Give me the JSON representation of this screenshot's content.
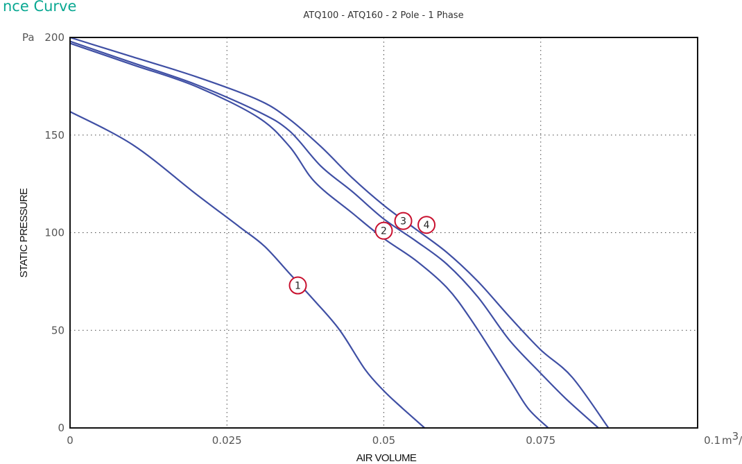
{
  "page": {
    "title": "nce Curve"
  },
  "chart_data": {
    "type": "line",
    "title": "ATQ100 - ATQ160 - 2 Pole - 1 Phase",
    "xlabel": "AIR VOLUME",
    "ylabel": "STATIC PRESSURE",
    "y_unit": "Pa",
    "x_unit_prefix": "m",
    "x_unit_super": "3",
    "x_unit_suffix": "/s",
    "xlim": [
      0,
      0.1
    ],
    "ylim": [
      0,
      200
    ],
    "x_ticks": [
      {
        "value": 0,
        "label": "0"
      },
      {
        "value": 0.025,
        "label": "0.025"
      },
      {
        "value": 0.05,
        "label": "0.05"
      },
      {
        "value": 0.075,
        "label": "0.075"
      },
      {
        "value": 0.1,
        "label": "0.1"
      }
    ],
    "y_ticks": [
      {
        "value": 0,
        "label": "0"
      },
      {
        "value": 50,
        "label": "50"
      },
      {
        "value": 100,
        "label": "100"
      },
      {
        "value": 150,
        "label": "150"
      },
      {
        "value": 200,
        "label": "200"
      }
    ],
    "grid": true,
    "line_color": "#3f4fa4",
    "marker_color": "#c8102e",
    "series": [
      {
        "name": "1",
        "points": [
          [
            0,
            162
          ],
          [
            0.01,
            145
          ],
          [
            0.02,
            120
          ],
          [
            0.027,
            103
          ],
          [
            0.031,
            93
          ],
          [
            0.035,
            79
          ],
          [
            0.039,
            65
          ],
          [
            0.043,
            50
          ],
          [
            0.047,
            30
          ],
          [
            0.05,
            19
          ],
          [
            0.053,
            10
          ],
          [
            0.0565,
            0
          ]
        ],
        "label_at": [
          0.0363,
          73
        ]
      },
      {
        "name": "2",
        "points": [
          [
            0,
            197
          ],
          [
            0.01,
            186
          ],
          [
            0.02,
            175
          ],
          [
            0.03,
            159
          ],
          [
            0.035,
            144
          ],
          [
            0.039,
            126
          ],
          [
            0.045,
            110
          ],
          [
            0.05,
            97
          ],
          [
            0.055,
            86
          ],
          [
            0.06,
            72
          ],
          [
            0.064,
            55
          ],
          [
            0.07,
            25
          ],
          [
            0.073,
            10
          ],
          [
            0.0762,
            0
          ]
        ],
        "label_at": [
          0.05,
          101
        ]
      },
      {
        "name": "3",
        "points": [
          [
            0,
            198
          ],
          [
            0.01,
            187
          ],
          [
            0.02,
            176
          ],
          [
            0.03,
            162
          ],
          [
            0.035,
            152
          ],
          [
            0.04,
            134
          ],
          [
            0.045,
            121
          ],
          [
            0.05,
            107
          ],
          [
            0.055,
            96
          ],
          [
            0.06,
            84
          ],
          [
            0.065,
            67
          ],
          [
            0.07,
            45
          ],
          [
            0.075,
            28
          ],
          [
            0.079,
            15
          ],
          [
            0.0842,
            0
          ]
        ],
        "label_at": [
          0.0531,
          106
        ]
      },
      {
        "name": "4",
        "points": [
          [
            0,
            200
          ],
          [
            0.01,
            190
          ],
          [
            0.02,
            180
          ],
          [
            0.03,
            168
          ],
          [
            0.035,
            158
          ],
          [
            0.04,
            144
          ],
          [
            0.045,
            128
          ],
          [
            0.05,
            114
          ],
          [
            0.055,
            102
          ],
          [
            0.06,
            90
          ],
          [
            0.065,
            75
          ],
          [
            0.07,
            57
          ],
          [
            0.075,
            40
          ],
          [
            0.08,
            26
          ],
          [
            0.0858,
            0
          ]
        ],
        "label_at": [
          0.0568,
          104
        ]
      }
    ]
  }
}
